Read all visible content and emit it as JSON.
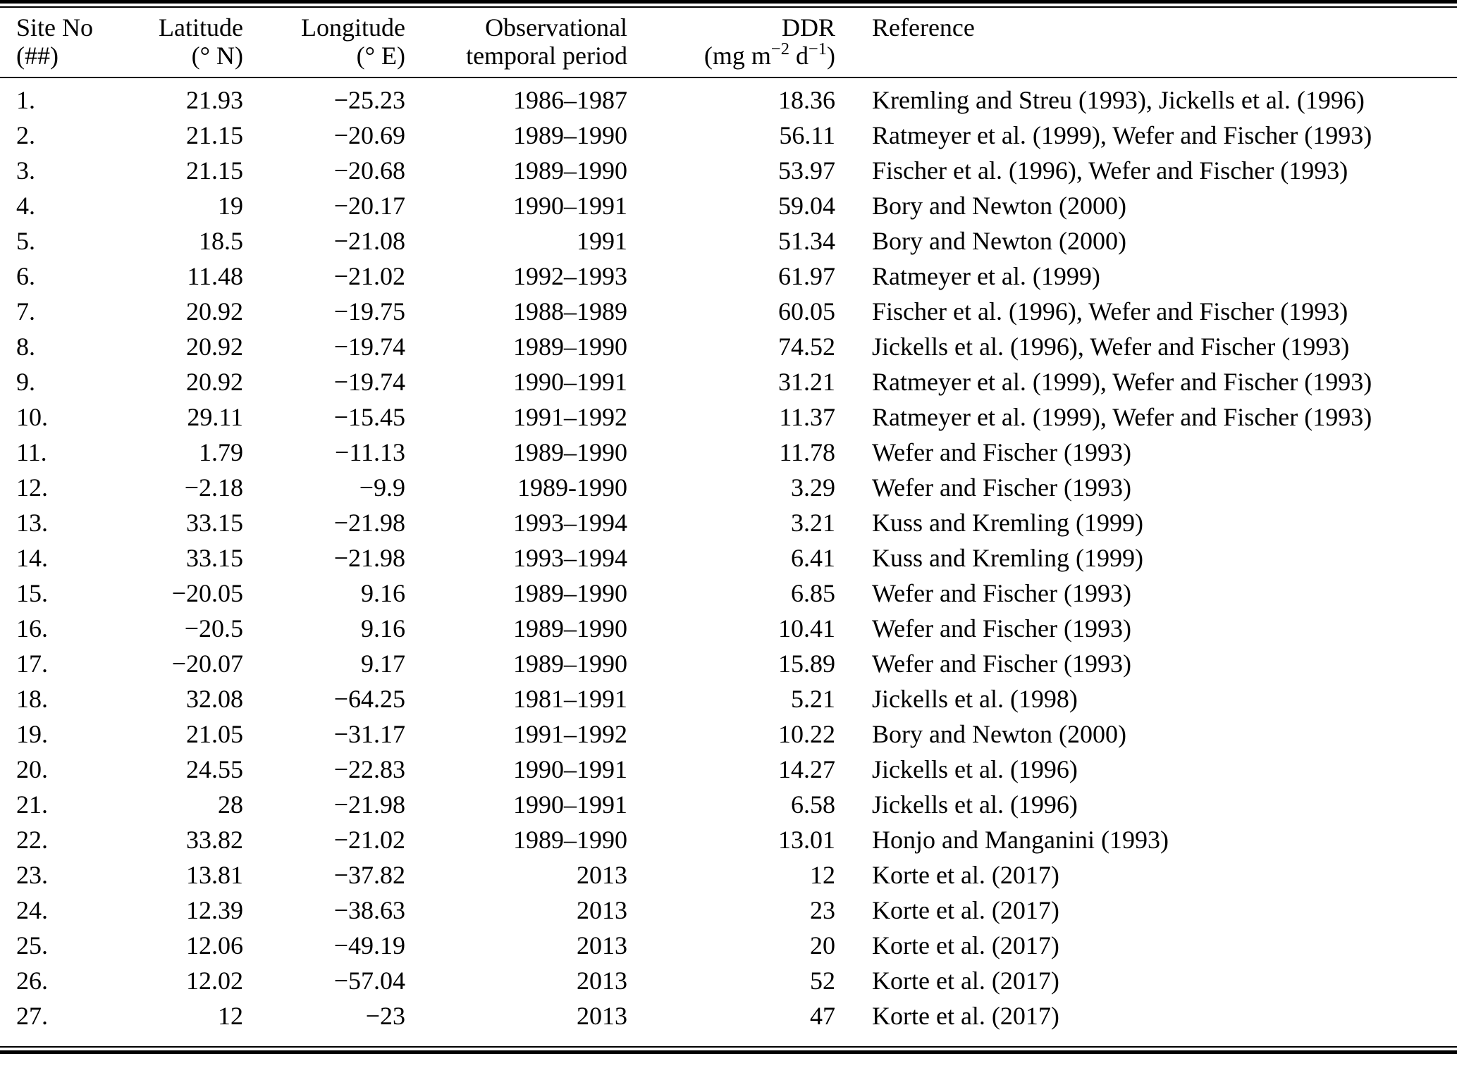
{
  "page": {
    "background": "#ffffff",
    "text_color": "#000000"
  },
  "table": {
    "column_keys": [
      "site-no",
      "latitude",
      "longitude",
      "temporal-period",
      "ddr",
      "reference"
    ],
    "header": {
      "site_no": {
        "line1": "Site No",
        "line2": "(##)"
      },
      "latitude": {
        "line1": "Latitude",
        "line2": "(° N)"
      },
      "longitude": {
        "line1": "Longitude",
        "line2": "(° E)"
      },
      "temporal": {
        "line1": "Observational",
        "line2": "temporal period"
      },
      "ddr": {
        "line1": "DDR",
        "unit_prefix": "(mg m",
        "unit_sup1": "−2",
        "unit_mid": " d",
        "unit_sup2": "−1",
        "unit_suffix": ")"
      },
      "reference": {
        "line1": "Reference",
        "line2": ""
      }
    },
    "rows": [
      [
        "1.",
        "21.93",
        "−25.23",
        "1986–1987",
        "18.36",
        "Kremling and Streu (1993), Jickells et al. (1996)"
      ],
      [
        "2.",
        "21.15",
        "−20.69",
        "1989–1990",
        "56.11",
        "Ratmeyer et al. (1999), Wefer and Fischer (1993)"
      ],
      [
        "3.",
        "21.15",
        "−20.68",
        "1989–1990",
        "53.97",
        "Fischer et al. (1996), Wefer and Fischer (1993)"
      ],
      [
        "4.",
        "19",
        "−20.17",
        "1990–1991",
        "59.04",
        "Bory and Newton (2000)"
      ],
      [
        "5.",
        "18.5",
        "−21.08",
        "1991",
        "51.34",
        "Bory and Newton (2000)"
      ],
      [
        "6.",
        "11.48",
        "−21.02",
        "1992–1993",
        "61.97",
        "Ratmeyer et al. (1999)"
      ],
      [
        "7.",
        "20.92",
        "−19.75",
        "1988–1989",
        "60.05",
        "Fischer et al. (1996), Wefer and Fischer (1993)"
      ],
      [
        "8.",
        "20.92",
        "−19.74",
        "1989–1990",
        "74.52",
        "Jickells et al. (1996), Wefer and Fischer (1993)"
      ],
      [
        "9.",
        "20.92",
        "−19.74",
        "1990–1991",
        "31.21",
        "Ratmeyer et al. (1999), Wefer and Fischer (1993)"
      ],
      [
        "10.",
        "29.11",
        "−15.45",
        "1991–1992",
        "11.37",
        "Ratmeyer et al. (1999), Wefer and Fischer (1993)"
      ],
      [
        "11.",
        "1.79",
        "−11.13",
        "1989–1990",
        "11.78",
        "Wefer and Fischer (1993)"
      ],
      [
        "12.",
        "−2.18",
        "−9.9",
        "1989-1990",
        "3.29",
        "Wefer and Fischer (1993)"
      ],
      [
        "13.",
        "33.15",
        "−21.98",
        "1993–1994",
        "3.21",
        "Kuss and Kremling (1999)"
      ],
      [
        "14.",
        "33.15",
        "−21.98",
        "1993–1994",
        "6.41",
        "Kuss and Kremling (1999)"
      ],
      [
        "15.",
        "−20.05",
        "9.16",
        "1989–1990",
        "6.85",
        "Wefer and Fischer (1993)"
      ],
      [
        "16.",
        "−20.5",
        "9.16",
        "1989–1990",
        "10.41",
        "Wefer and Fischer (1993)"
      ],
      [
        "17.",
        "−20.07",
        "9.17",
        "1989–1990",
        "15.89",
        "Wefer and Fischer (1993)"
      ],
      [
        "18.",
        "32.08",
        "−64.25",
        "1981–1991",
        "5.21",
        "Jickells et al. (1998)"
      ],
      [
        "19.",
        "21.05",
        "−31.17",
        "1991–1992",
        "10.22",
        "Bory and Newton (2000)"
      ],
      [
        "20.",
        "24.55",
        "−22.83",
        "1990–1991",
        "14.27",
        "Jickells et al. (1996)"
      ],
      [
        "21.",
        "28",
        "−21.98",
        "1990–1991",
        "6.58",
        "Jickells et al. (1996)"
      ],
      [
        "22.",
        "33.82",
        "−21.02",
        "1989–1990",
        "13.01",
        "Honjo and Manganini (1993)"
      ],
      [
        "23.",
        "13.81",
        "−37.82",
        "2013",
        "12",
        "Korte et al. (2017)"
      ],
      [
        "24.",
        "12.39",
        "−38.63",
        "2013",
        "23",
        "Korte et al. (2017)"
      ],
      [
        "25.",
        "12.06",
        "−49.19",
        "2013",
        "20",
        "Korte et al. (2017)"
      ],
      [
        "26.",
        "12.02",
        "−57.04",
        "2013",
        "52",
        "Korte et al. (2017)"
      ],
      [
        "27.",
        "12",
        "−23",
        "2013",
        "47",
        "Korte et al. (2017)"
      ]
    ]
  }
}
